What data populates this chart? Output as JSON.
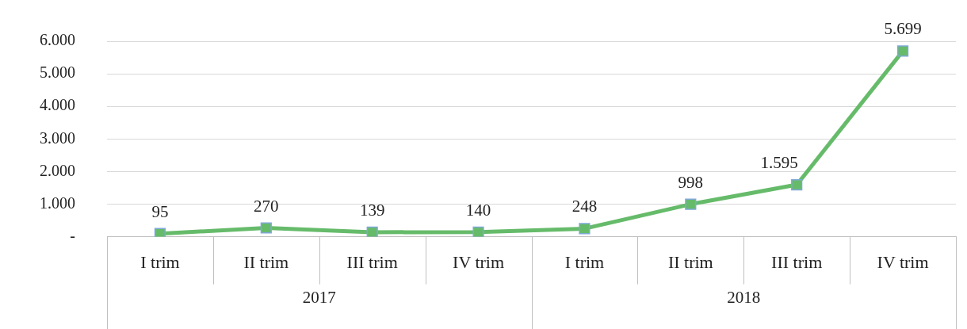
{
  "chart_data": {
    "type": "line",
    "categories": [
      "I trim",
      "II trim",
      "III trim",
      "IV trim",
      "I trim",
      "II trim",
      "III trim",
      "IV trim"
    ],
    "annotations": [
      "2017",
      "2018"
    ],
    "series": [
      {
        "color": "#66bb6a",
        "values": [
          95,
          270,
          139,
          140,
          248,
          998,
          1595,
          5699
        ],
        "value_labels": [
          "95",
          "270",
          "139",
          "140",
          "248",
          "998",
          "1.595",
          "5.699"
        ]
      }
    ],
    "ylim": [
      0,
      6000
    ],
    "yticks": [
      {
        "value": 0,
        "label": "-"
      },
      {
        "value": 1000,
        "label": "1.000"
      },
      {
        "value": 2000,
        "label": "2.000"
      },
      {
        "value": 3000,
        "label": "3.000"
      },
      {
        "value": 4000,
        "label": "4.000"
      },
      {
        "value": 5000,
        "label": "5.000"
      },
      {
        "value": 6000,
        "label": "6.000"
      }
    ],
    "grid": "y",
    "legend": false,
    "marker": "square",
    "line_style": "solid"
  }
}
